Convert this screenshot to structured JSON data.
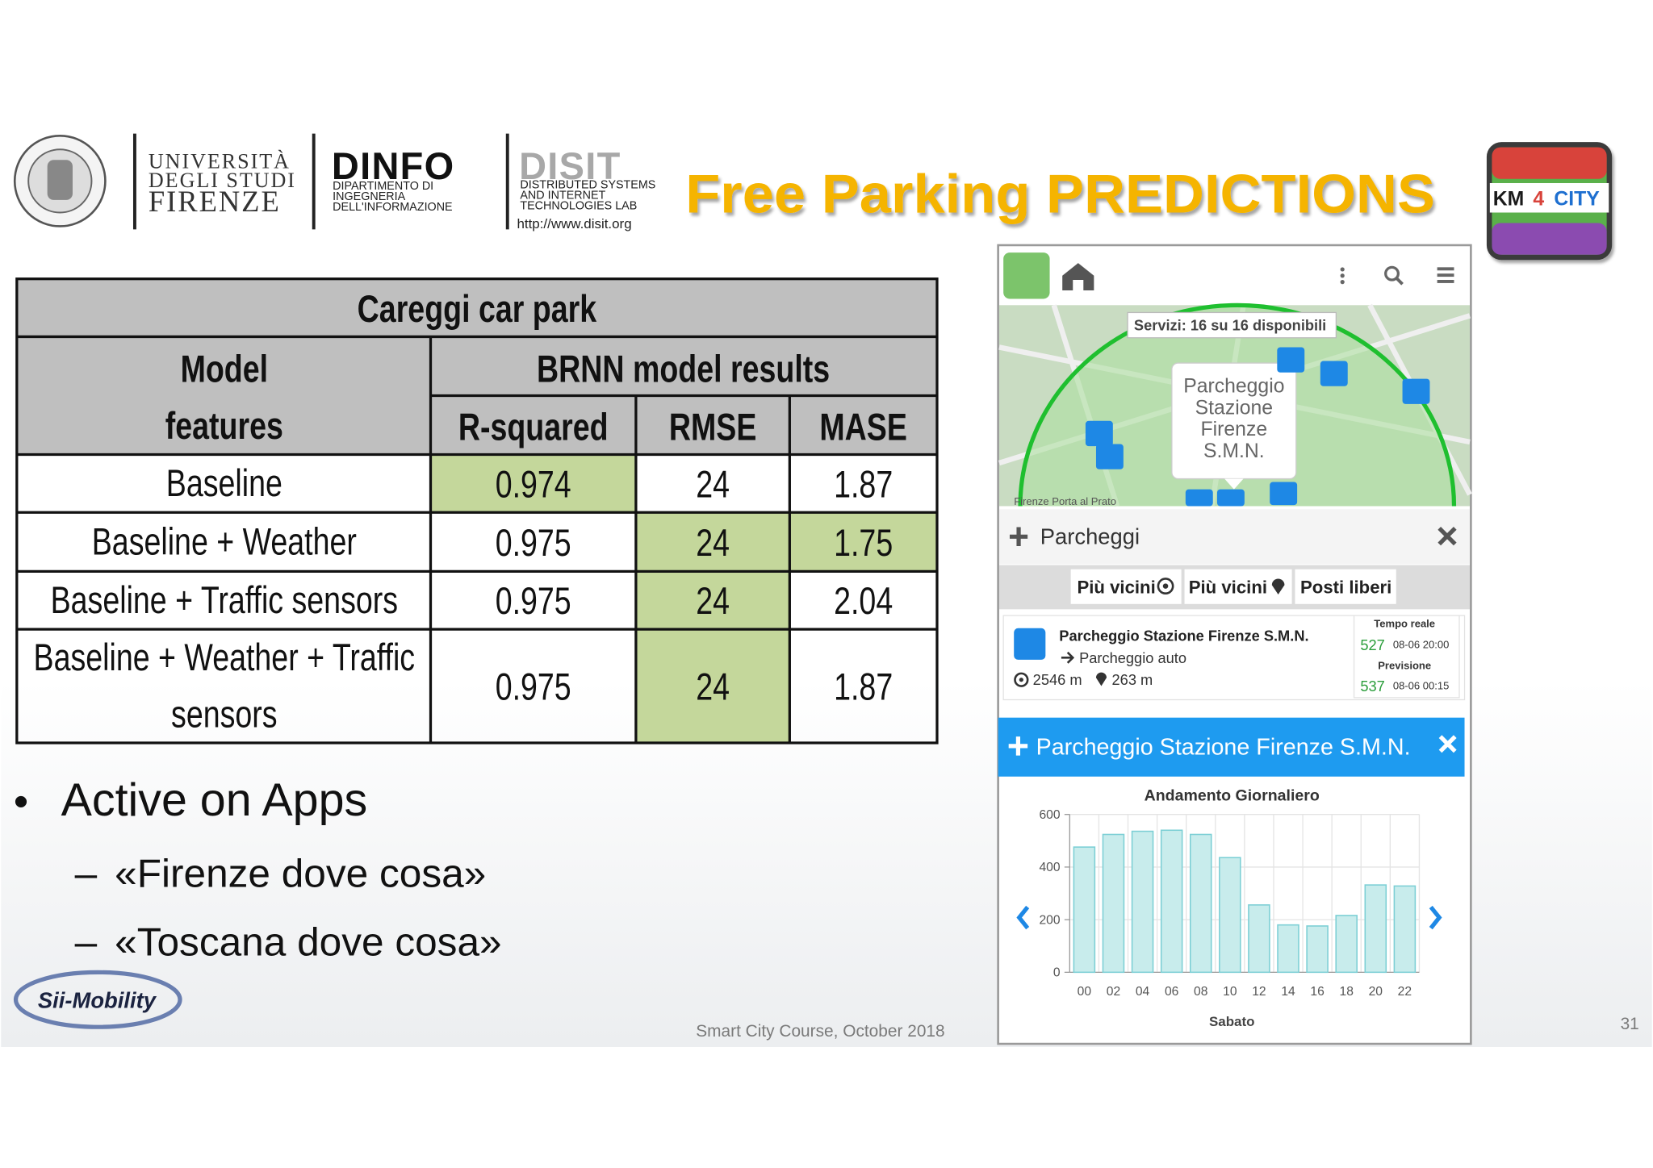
{
  "header": {
    "university": [
      "UNIVERSITÀ",
      "DEGLI STUDI",
      "FIRENZE"
    ],
    "dinfo": {
      "name": "DINFO",
      "lines": [
        "DIPARTIMENTO DI",
        "INGEGNERIA",
        "DELL'INFORMAZIONE"
      ]
    },
    "disit": {
      "name": "DISIT",
      "lines": [
        "DISTRIBUTED SYSTEMS",
        "AND INTERNET",
        "TECHNOLOGIES LAB"
      ],
      "url": "http://www.disit.org"
    },
    "title": "Free Parking PREDICTIONS",
    "km4city": [
      "KM",
      "4",
      "CITY"
    ]
  },
  "table": {
    "title": "Careggi car park",
    "features_header": [
      "Model",
      "features"
    ],
    "results_header": "BRNN model results",
    "columns": [
      "R-squared",
      "RMSE",
      "MASE"
    ],
    "rows": [
      [
        [
          "Baseline"
        ],
        0.974,
        24,
        1.87
      ],
      [
        [
          "Baseline + Weather"
        ],
        0.975,
        24,
        1.75
      ],
      [
        [
          "Baseline + Traffic sensors"
        ],
        0.975,
        24,
        2.04
      ],
      [
        [
          "Baseline + Weather + Traffic",
          "sensors"
        ],
        0.975,
        24,
        1.87
      ]
    ],
    "highlight": [
      [
        1
      ],
      [
        2,
        3
      ],
      [
        2
      ],
      [
        2
      ]
    ],
    "highlight_color": "#c4d79b"
  },
  "bullets": {
    "main": "Active on Apps",
    "sub": [
      "«Firenze dove cosa»",
      "«Toscana dove cosa»"
    ]
  },
  "footer": {
    "course": "Smart City Course, October 2018",
    "page": "31",
    "brand": "Sii-Mobility"
  },
  "app": {
    "services": "Servizi: 16 su 16 disponibili",
    "popup": [
      "Parcheggio",
      "Stazione",
      "Firenze",
      "S.M.N."
    ],
    "map_label": "Firenze Porta al Prato",
    "section": "Parcheggi",
    "buttons": [
      "Più vicini",
      "Più vicini",
      "Posti liberi"
    ],
    "card": {
      "name": "Parcheggio Stazione Firenze S.M.N.",
      "kind": "Parcheggio auto",
      "distance_a": "2546 m",
      "distance_b": "263 m",
      "realtime_label": "Tempo reale",
      "realtime_value": "527",
      "realtime_time": "08-06 20:00",
      "forecast_label": "Previsione",
      "forecast_value": "537",
      "forecast_time": "08-06 00:15"
    },
    "detail_title": "Parcheggio Stazione Firenze S.M.N."
  },
  "chart_data": {
    "type": "bar",
    "title": "Andamento Giornaliero",
    "x_label": "Sabato",
    "categories": [
      "00",
      "02",
      "04",
      "06",
      "08",
      "10",
      "12",
      "14",
      "16",
      "18",
      "20",
      "22"
    ],
    "values": [
      476,
      524,
      536,
      540,
      524,
      436,
      256,
      180,
      176,
      216,
      332,
      328
    ],
    "ylim": [
      0,
      600
    ],
    "yticks": [
      0,
      200,
      400,
      600
    ],
    "color": "#c8ecec",
    "edge_color": "#7ccfd5",
    "grid": true
  }
}
